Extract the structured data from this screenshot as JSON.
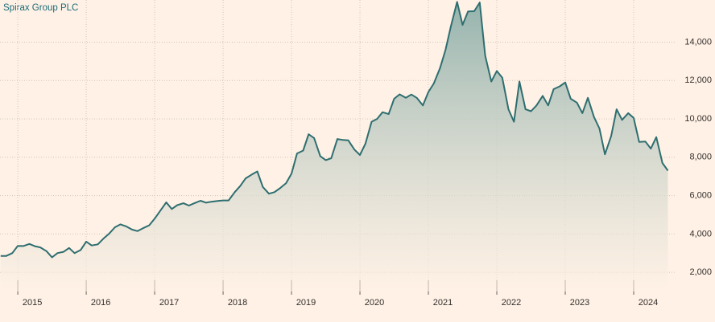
{
  "chart_data": {
    "type": "area",
    "title": "Spirax Group PLC",
    "x": [
      2014.75,
      2014.83,
      2014.92,
      2015.0,
      2015.08,
      2015.17,
      2015.25,
      2015.33,
      2015.42,
      2015.5,
      2015.58,
      2015.67,
      2015.75,
      2015.83,
      2015.92,
      2016.0,
      2016.08,
      2016.17,
      2016.25,
      2016.33,
      2016.42,
      2016.5,
      2016.58,
      2016.67,
      2016.75,
      2016.83,
      2016.92,
      2017.0,
      2017.08,
      2017.17,
      2017.25,
      2017.33,
      2017.42,
      2017.5,
      2017.58,
      2017.67,
      2017.75,
      2017.83,
      2017.92,
      2018.0,
      2018.08,
      2018.17,
      2018.25,
      2018.33,
      2018.42,
      2018.5,
      2018.58,
      2018.67,
      2018.75,
      2018.83,
      2018.92,
      2019.0,
      2019.08,
      2019.17,
      2019.25,
      2019.33,
      2019.42,
      2019.5,
      2019.58,
      2019.67,
      2019.75,
      2019.83,
      2019.92,
      2020.0,
      2020.08,
      2020.17,
      2020.25,
      2020.33,
      2020.42,
      2020.5,
      2020.58,
      2020.67,
      2020.75,
      2020.83,
      2020.92,
      2021.0,
      2021.08,
      2021.17,
      2021.25,
      2021.33,
      2021.42,
      2021.5,
      2021.58,
      2021.67,
      2021.75,
      2021.83,
      2021.92,
      2022.0,
      2022.08,
      2022.17,
      2022.25,
      2022.33,
      2022.42,
      2022.5,
      2022.58,
      2022.67,
      2022.75,
      2022.83,
      2022.92,
      2023.0,
      2023.08,
      2023.17,
      2023.25,
      2023.33,
      2023.42,
      2023.5,
      2023.58,
      2023.67,
      2023.75,
      2023.83,
      2023.92,
      2024.0,
      2024.08,
      2024.17,
      2024.25,
      2024.33,
      2024.42,
      2024.5
    ],
    "series": [
      {
        "name": "Spirax Group PLC",
        "color": "#2e6e70",
        "values": [
          2850,
          2850,
          3000,
          3380,
          3370,
          3480,
          3360,
          3300,
          3100,
          2780,
          3000,
          3070,
          3270,
          3000,
          3170,
          3600,
          3400,
          3460,
          3750,
          4000,
          4350,
          4500,
          4400,
          4230,
          4150,
          4300,
          4450,
          4800,
          5200,
          5650,
          5300,
          5500,
          5600,
          5480,
          5600,
          5730,
          5630,
          5680,
          5720,
          5750,
          5750,
          6180,
          6500,
          6900,
          7100,
          7260,
          6450,
          6100,
          6180,
          6380,
          6650,
          7150,
          8200,
          8350,
          9200,
          9000,
          8050,
          7850,
          7950,
          8950,
          8900,
          8880,
          8400,
          8120,
          8700,
          9850,
          10000,
          10350,
          10250,
          11050,
          11280,
          11100,
          11270,
          11100,
          10700,
          11400,
          11850,
          12650,
          13600,
          14850,
          16100,
          14900,
          15600,
          15620,
          16070,
          13300,
          11950,
          12500,
          12150,
          10500,
          9850,
          11950,
          10500,
          10400,
          10700,
          11200,
          10700,
          11550,
          11700,
          11900,
          11050,
          10850,
          10300,
          11100,
          10100,
          9500,
          8150,
          9100,
          10500,
          9950,
          10300,
          10050,
          8800,
          8820,
          8450,
          9050,
          7700,
          7300
        ]
      }
    ],
    "xlim": [
      2014.74,
      2024.6
    ],
    "xticks": [
      2015,
      2016,
      2017,
      2018,
      2019,
      2020,
      2021,
      2022,
      2023,
      2024
    ],
    "ylim": [
      1000,
      16200
    ],
    "yticks": [
      {
        "value": 2000,
        "label": "2,000"
      },
      {
        "value": 4000,
        "label": "4,000"
      },
      {
        "value": 6000,
        "label": "6,000"
      },
      {
        "value": 8000,
        "label": "8,000"
      },
      {
        "value": 10000,
        "label": "10,000"
      },
      {
        "value": 12000,
        "label": "12,000"
      },
      {
        "value": 14000,
        "label": "14,000"
      }
    ],
    "grid": true
  }
}
